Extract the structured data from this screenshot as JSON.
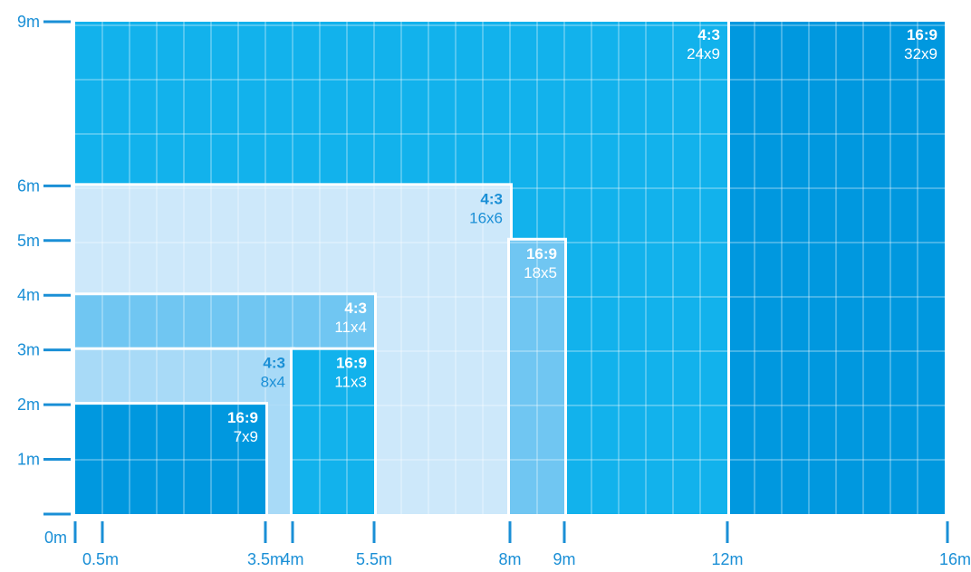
{
  "colors": {
    "axis": "#1a8fd6",
    "light": "#cde8fa",
    "pale": "#a8daf7",
    "medium": "#70c6f2",
    "bright": "#12b2ec",
    "deep": "#0098df",
    "divider": "#ffffff"
  },
  "x_axis": {
    "ticks": [
      {
        "value": 0,
        "label": "",
        "side": "none"
      },
      {
        "value": 0.5,
        "label": "0.5m"
      },
      {
        "value": 3.5,
        "label": "3.5m"
      },
      {
        "value": 4,
        "label": "4m"
      },
      {
        "value": 5.5,
        "label": "5.5m"
      },
      {
        "value": 8,
        "label": "8m"
      },
      {
        "value": 9,
        "label": "9m"
      },
      {
        "value": 12,
        "label": "12m"
      },
      {
        "value": 16,
        "label": "16m"
      }
    ],
    "origin_label": "0m"
  },
  "y_axis": {
    "ticks": [
      {
        "value": 0,
        "label": ""
      },
      {
        "value": 1,
        "label": "1m"
      },
      {
        "value": 2,
        "label": "2m"
      },
      {
        "value": 3,
        "label": "3m"
      },
      {
        "value": 4,
        "label": "4m"
      },
      {
        "value": 5,
        "label": "5m"
      },
      {
        "value": 6,
        "label": "6m"
      },
      {
        "value": 9,
        "label": "9m"
      }
    ]
  },
  "walls": [
    {
      "id": "wall-32x9",
      "x0": 12,
      "x1": 16,
      "y0": 0,
      "y1": 9,
      "color": "deep",
      "cols": 32,
      "rows": 9,
      "ratio": "16:9",
      "size": "32x9",
      "label_color": "#ffffff",
      "size_color": "#ffffff"
    },
    {
      "id": "wall-24x9",
      "x0": 0,
      "x1": 12,
      "y0": 0,
      "y1": 9,
      "color": "bright",
      "cols": 24,
      "rows": 9,
      "ratio": "4:3",
      "size": "24x9",
      "label_color": "#ffffff",
      "size_color": "#ffffff"
    },
    {
      "id": "wall-16x6",
      "x0": 0,
      "x1": 8,
      "y0": 0,
      "y1": 6,
      "color": "light",
      "cols": 16,
      "rows": 6,
      "ratio": "4:3",
      "size": "16x6",
      "label_color": "#1a8fd6",
      "size_color": "#1a8fd6"
    },
    {
      "id": "wall-18x5",
      "x0": 8,
      "x1": 9,
      "y0": 0,
      "y1": 5,
      "color": "medium",
      "cols": 3,
      "rows": 10,
      "ratio": "16:9",
      "size": "18x5",
      "label_color": "#ffffff",
      "size_color": "#ffffff"
    },
    {
      "id": "wall-11x4",
      "x0": 0,
      "x1": 5.5,
      "y0": 3,
      "y1": 4,
      "color": "medium",
      "cols": 11,
      "rows": 1,
      "ratio": "4:3",
      "size": "11x4",
      "label_color": "#ffffff",
      "size_color": "#ffffff"
    },
    {
      "id": "wall-8x4",
      "x0": 0,
      "x1": 4,
      "y0": 2,
      "y1": 3,
      "color": "pale",
      "cols": 8,
      "rows": 1,
      "ratio": "4:3",
      "size": "8x4",
      "label_color": "#1a8fd6",
      "size_color": "#1a8fd6",
      "extend_x1": 4,
      "extend_y0": 0,
      "extend_x0": 3.5
    },
    {
      "id": "wall-11x3",
      "x0": 4,
      "x1": 5.5,
      "y0": 0,
      "y1": 3,
      "color": "bright",
      "cols": 3,
      "rows": 6,
      "ratio": "16:9",
      "size": "11x3",
      "label_color": "#ffffff",
      "size_color": "#ffffff"
    },
    {
      "id": "wall-7x9",
      "x0": 0,
      "x1": 3.5,
      "y0": 0,
      "y1": 2,
      "color": "deep",
      "cols": 7,
      "rows": 4,
      "ratio": "16:9",
      "size": "7x9",
      "label_color": "#ffffff",
      "size_color": "#ffffff"
    }
  ]
}
